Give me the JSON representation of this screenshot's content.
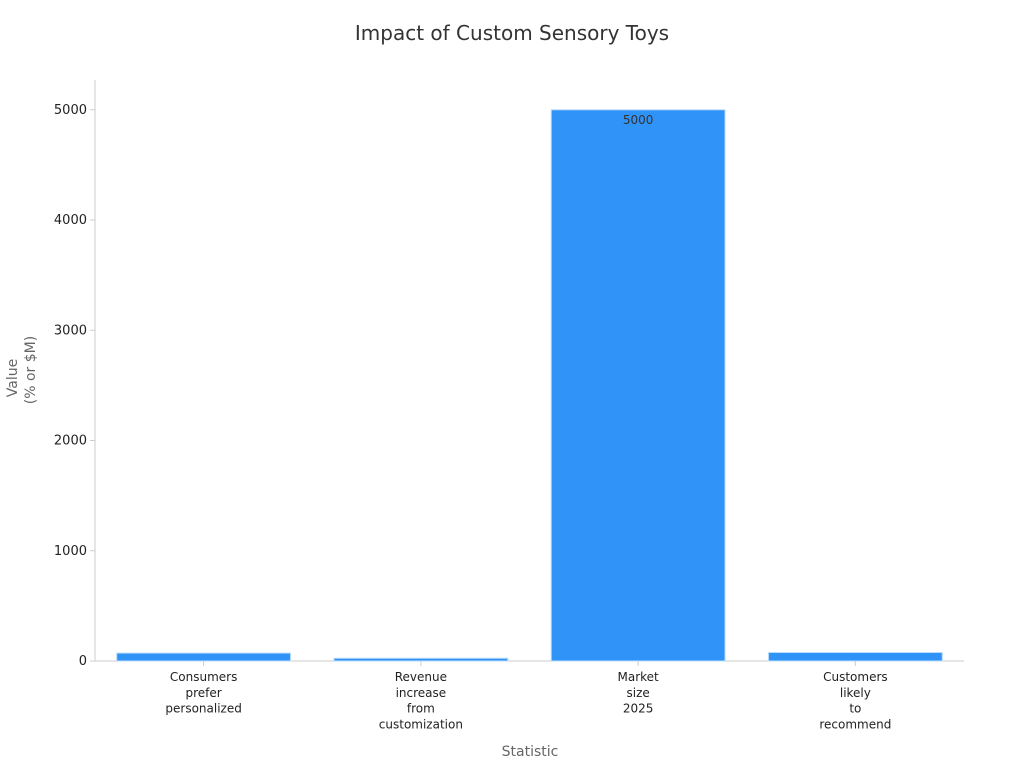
{
  "chart_data": {
    "type": "bar",
    "title": "Impact of Custom Sensory Toys",
    "xlabel": "Statistic",
    "ylabel": [
      "Value",
      "(% or $M)"
    ],
    "categories": [
      [
        "Consumers",
        "prefer",
        "personalized"
      ],
      [
        "Revenue",
        "increase",
        "from",
        "customization"
      ],
      [
        "Market",
        "size",
        "2025"
      ],
      [
        "Customers",
        "likely",
        "to",
        "recommend"
      ]
    ],
    "values": [
      72,
      25,
      5000,
      77
    ],
    "data_labels": [
      "",
      "",
      "5000",
      ""
    ],
    "ylim": [
      0,
      5270
    ],
    "yticks": [
      0,
      1000,
      2000,
      3000,
      4000,
      5000
    ],
    "grid": false,
    "bar_color": "#2f93f8",
    "bar_edge_color": "#bcdcfb"
  }
}
